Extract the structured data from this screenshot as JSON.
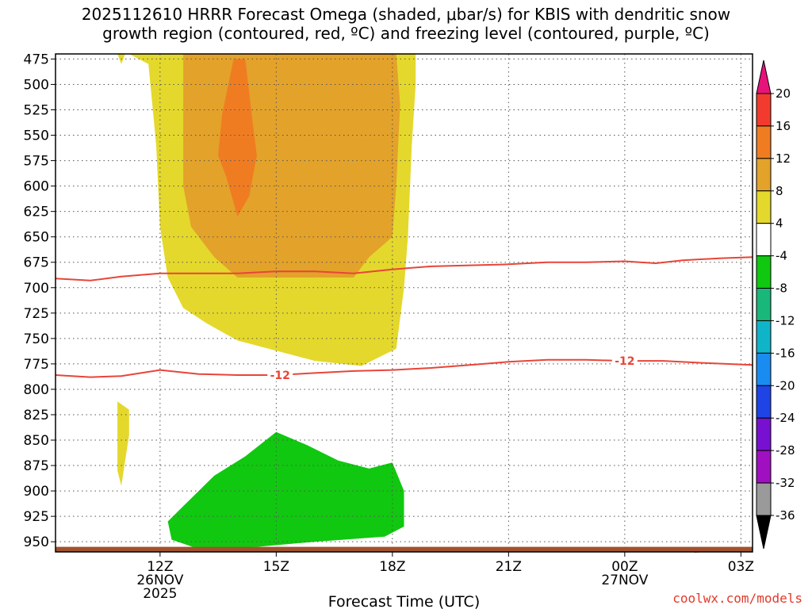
{
  "title": {
    "line1": "2025112610 HRRR Forecast Omega (shaded, μbar/s) for KBIS with dendritic snow",
    "line2": "growth region (contoured, red, ºC) and freezing level (contoured, purple, ºC)"
  },
  "credit": "coolwx.com/models",
  "chart_data": {
    "type": "time-height cross-section",
    "xlabel": "Forecast Time (UTC)",
    "ylabel": "",
    "y_axis": "pressure (mb), inverted",
    "ylim": [
      960,
      470
    ],
    "xlim_hours": [
      9.3,
      27.3
    ],
    "y_ticks": [
      475,
      500,
      525,
      550,
      575,
      600,
      625,
      650,
      675,
      700,
      725,
      750,
      775,
      800,
      825,
      850,
      875,
      900,
      925,
      950
    ],
    "x_ticks": [
      {
        "hour": 12,
        "label": "12Z",
        "date": "26NOV",
        "year": "2025"
      },
      {
        "hour": 15,
        "label": "15Z",
        "date": "",
        "year": ""
      },
      {
        "hour": 18,
        "label": "18Z",
        "date": "",
        "year": ""
      },
      {
        "hour": 21,
        "label": "21Z",
        "date": "",
        "year": ""
      },
      {
        "hour": 24,
        "label": "00Z",
        "date": "27NOV",
        "year": ""
      },
      {
        "hour": 27,
        "label": "03Z",
        "date": "",
        "year": ""
      }
    ],
    "grid": true,
    "colorbar": {
      "labels": [
        "20",
        "16",
        "12",
        "8",
        "4",
        "-4",
        "-8",
        "-12",
        "-16",
        "-20",
        "-24",
        "-28",
        "-32",
        "-36"
      ],
      "colors": [
        "#e8137a",
        "#f23b2e",
        "#f07c22",
        "#e3a22a",
        "#e4d82c",
        "#ffffff",
        "#10c810",
        "#1ab77a",
        "#10b4c8",
        "#1a8cf0",
        "#1e44e6",
        "#7810d2",
        "#a010c0",
        "#9a9a9a",
        "#000000"
      ]
    },
    "omega_regions": [
      {
        "level": "4 to 8",
        "color": "#e4d82c",
        "points": [
          [
            11.3,
            470
          ],
          [
            13.8,
            470
          ],
          [
            12.6,
            470
          ],
          [
            12.6,
            470
          ]
        ]
      },
      {
        "level": "-4 to -8",
        "color": "#10c810",
        "note": "green region near 12Z-18Z, 840-950 mb"
      }
    ],
    "contour_labels": [
      "-12",
      "-12"
    ],
    "contours": [
      {
        "name": "-12",
        "color": "#e84538",
        "points": [
          [
            9.3,
            691
          ],
          [
            10.2,
            693
          ],
          [
            11.0,
            689
          ],
          [
            12.0,
            686
          ],
          [
            13.0,
            686
          ],
          [
            14.0,
            686
          ],
          [
            15.0,
            684
          ],
          [
            16.0,
            684
          ],
          [
            17.0,
            686
          ],
          [
            18.0,
            682
          ],
          [
            19.0,
            679
          ],
          [
            20.0,
            678
          ],
          [
            21.0,
            677
          ],
          [
            22.0,
            675
          ],
          [
            23.0,
            675
          ],
          [
            24.0,
            674
          ],
          [
            24.8,
            676
          ],
          [
            25.5,
            673
          ],
          [
            26.5,
            671
          ],
          [
            27.3,
            670
          ]
        ]
      },
      {
        "name": "-12",
        "color": "#e84538",
        "points": [
          [
            9.3,
            786
          ],
          [
            10.2,
            788
          ],
          [
            11.0,
            787
          ],
          [
            12.0,
            781
          ],
          [
            13.0,
            785
          ],
          [
            14.0,
            786
          ],
          [
            15.0,
            786
          ],
          [
            16.0,
            784
          ],
          [
            17.0,
            782
          ],
          [
            18.0,
            781
          ],
          [
            19.0,
            779
          ],
          [
            20.0,
            776
          ],
          [
            21.0,
            773
          ],
          [
            22.0,
            771
          ],
          [
            23.0,
            771
          ],
          [
            24.0,
            772
          ],
          [
            25.0,
            772
          ],
          [
            26.0,
            774
          ],
          [
            27.3,
            776
          ]
        ]
      }
    ],
    "freezing_level": {
      "color": "#e84538",
      "points": [
        [
          25.8,
          960
        ],
        [
          26.5,
          958
        ],
        [
          27.3,
          957
        ]
      ]
    },
    "ground": {
      "color": "#a0522d",
      "top_mb": 955
    }
  }
}
